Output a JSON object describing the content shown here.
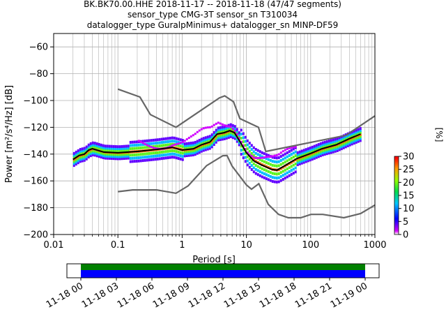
{
  "title_lines": [
    "BK.BK70.00.HHE   2018-11-17 -- 2018-11-18  (47/47 segments)",
    "sensor_type CMG-3T sensor_sn T310034",
    "datalogger_type GuralpMinimus+ datalogger_sn MINP-DF59"
  ],
  "chart_data": {
    "type": "heatmap",
    "title": "BK.BK70.00.HHE   2018-11-17 -- 2018-11-18  (47/47 segments)",
    "xlabel": "Period [s]",
    "ylabel": "Power [m²/s⁴/Hz] [dB]",
    "xscale": "log",
    "xlim": [
      0.01,
      1000
    ],
    "ylim": [
      -200,
      -50
    ],
    "grid": true,
    "x_ticks": [
      0.01,
      0.1,
      1,
      10,
      100,
      1000
    ],
    "x_tick_labels": [
      "0.01",
      "0.1",
      "1",
      "10",
      "100",
      "1000"
    ],
    "y_ticks": [
      -200,
      -180,
      -160,
      -140,
      -120,
      -100,
      -80,
      -60
    ],
    "y_tick_labels": [
      "−200",
      "−180",
      "−160",
      "−140",
      "−120",
      "−100",
      "−80",
      "−60"
    ],
    "series": [
      {
        "name": "",
        "role": "high noise model",
        "color": "#666666",
        "points": [
          [
            0.1,
            -91.5
          ],
          [
            0.22,
            -97.4
          ],
          [
            0.32,
            -110.5
          ],
          [
            0.8,
            -120
          ],
          [
            3.8,
            -98
          ],
          [
            4.6,
            -96.5
          ],
          [
            6.3,
            -101
          ],
          [
            7.9,
            -113.5
          ],
          [
            15.4,
            -120
          ],
          [
            20,
            -138
          ],
          [
            354,
            -126
          ],
          [
            1000,
            -111.5
          ]
        ]
      },
      {
        "name": "",
        "role": "low noise model",
        "color": "#666666",
        "points": [
          [
            0.1,
            -168
          ],
          [
            0.17,
            -166.7
          ],
          [
            0.4,
            -166.7
          ],
          [
            0.8,
            -169.2
          ],
          [
            1.24,
            -163.7
          ],
          [
            2.4,
            -148.6
          ],
          [
            4.3,
            -141.2
          ],
          [
            5,
            -141.1
          ],
          [
            6,
            -149
          ],
          [
            10,
            -163
          ],
          [
            12,
            -166.2
          ],
          [
            15.6,
            -162.1
          ],
          [
            21.9,
            -177.5
          ],
          [
            31.6,
            -185
          ],
          [
            45,
            -187.5
          ],
          [
            70,
            -187.5
          ],
          [
            101,
            -185
          ],
          [
            154,
            -185
          ],
          [
            328,
            -187.5
          ],
          [
            600,
            -184.4
          ],
          [
            1000,
            -178
          ]
        ]
      },
      {
        "name": "",
        "role": "mode",
        "color": "#000000",
        "points": [
          [
            0.02,
            -144
          ],
          [
            0.025,
            -141
          ],
          [
            0.03,
            -140
          ],
          [
            0.035,
            -137
          ],
          [
            0.04,
            -136
          ],
          [
            0.06,
            -138.5
          ],
          [
            0.1,
            -139
          ],
          [
            0.2,
            -138
          ],
          [
            0.4,
            -136.5
          ],
          [
            0.7,
            -135
          ],
          [
            1,
            -137
          ],
          [
            1.5,
            -136
          ],
          [
            2,
            -133
          ],
          [
            2.7,
            -131
          ],
          [
            3.5,
            -125
          ],
          [
            4.5,
            -124
          ],
          [
            5.5,
            -122.5
          ],
          [
            6.5,
            -124
          ],
          [
            8,
            -131
          ],
          [
            10,
            -139
          ],
          [
            13,
            -145
          ],
          [
            17,
            -148
          ],
          [
            20,
            -149.5
          ],
          [
            25,
            -151.5
          ],
          [
            30,
            -152
          ],
          [
            40,
            -148.5
          ],
          [
            60,
            -143.5
          ],
          [
            100,
            -139.5
          ],
          [
            150,
            -136
          ],
          [
            250,
            -133
          ],
          [
            400,
            -128.5
          ],
          [
            600,
            -125
          ]
        ]
      }
    ],
    "colorbar": {
      "label": "[%]",
      "range": [
        0,
        30
      ],
      "ticks": [
        0,
        5,
        10,
        15,
        20,
        25,
        30
      ]
    },
    "time_axis": {
      "tick_labels": [
        "11-18 00",
        "11-18 03",
        "11-18 06",
        "11-18 09",
        "11-18 12",
        "11-18 15",
        "11-18 18",
        "11-18 21",
        "11-19 00"
      ],
      "coverage_start": "11-18 00",
      "coverage_end": "11-19 00",
      "colors": [
        "#008000",
        "#0000ff"
      ]
    }
  }
}
